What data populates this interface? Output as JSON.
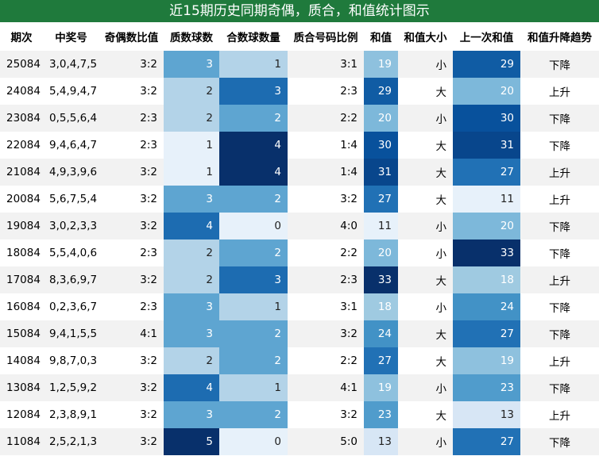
{
  "title": "近15期历史同期奇偶，质合，和值统计图示",
  "header": [
    "期次",
    "中奖号",
    "奇偶数比值",
    "质数球数",
    "合数球数量",
    "质合号码比例",
    "和值",
    "和值大小",
    "上一次和值",
    "和值升降趋势"
  ],
  "rows": [
    [
      "25084",
      "3,0,4,7,5",
      "3:2",
      3,
      1,
      "3:1",
      19,
      "小",
      29,
      "下降"
    ],
    [
      "24084",
      "5,4,9,4,7",
      "3:2",
      2,
      3,
      "2:3",
      29,
      "大",
      20,
      "上升"
    ],
    [
      "23084",
      "0,5,5,6,4",
      "2:3",
      2,
      2,
      "2:2",
      20,
      "小",
      30,
      "下降"
    ],
    [
      "22084",
      "9,4,6,4,7",
      "2:3",
      1,
      4,
      "1:4",
      30,
      "大",
      31,
      "下降"
    ],
    [
      "21084",
      "4,9,3,9,6",
      "3:2",
      1,
      4,
      "1:4",
      31,
      "大",
      27,
      "上升"
    ],
    [
      "20084",
      "5,6,7,5,4",
      "3:2",
      3,
      2,
      "3:2",
      27,
      "大",
      11,
      "上升"
    ],
    [
      "19084",
      "3,0,2,3,3",
      "3:2",
      4,
      0,
      "4:0",
      11,
      "小",
      20,
      "下降"
    ],
    [
      "18084",
      "5,5,4,0,6",
      "2:3",
      2,
      2,
      "2:2",
      20,
      "小",
      33,
      "下降"
    ],
    [
      "17084",
      "8,3,6,9,7",
      "3:2",
      2,
      3,
      "2:3",
      33,
      "大",
      18,
      "上升"
    ],
    [
      "16084",
      "0,2,3,6,7",
      "2:3",
      3,
      1,
      "3:1",
      18,
      "小",
      24,
      "下降"
    ],
    [
      "15084",
      "9,4,1,5,5",
      "4:1",
      3,
      2,
      "3:2",
      24,
      "大",
      27,
      "下降"
    ],
    [
      "14084",
      "9,8,7,0,3",
      "3:2",
      2,
      2,
      "2:2",
      27,
      "大",
      19,
      "上升"
    ],
    [
      "13084",
      "1,2,5,9,2",
      "3:2",
      4,
      1,
      "4:1",
      19,
      "小",
      23,
      "下降"
    ],
    [
      "12084",
      "2,3,8,9,1",
      "3:2",
      3,
      2,
      "3:2",
      23,
      "大",
      13,
      "上升"
    ],
    [
      "11084",
      "2,5,2,1,3",
      "3:2",
      5,
      0,
      "5:0",
      13,
      "小",
      27,
      "下降"
    ]
  ]
}
